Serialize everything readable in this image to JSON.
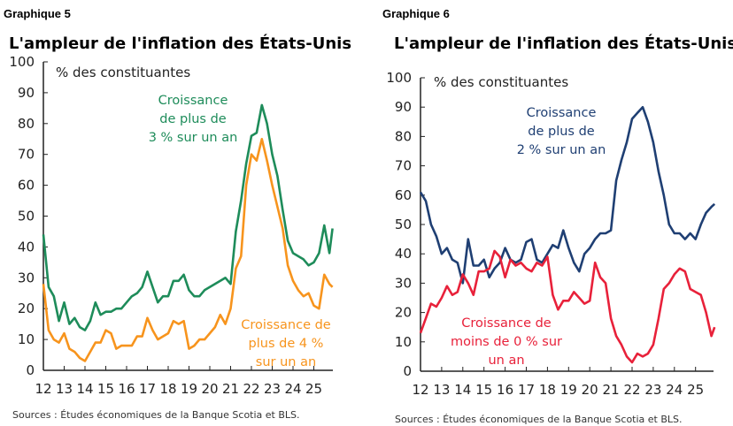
{
  "chart_data": [
    {
      "type": "line",
      "label": "Graphique 5",
      "title": "L'ampleur de l'inflation des États-Unis",
      "ylabel": "% des constituantes",
      "ylim": [
        0,
        100
      ],
      "yticks": [
        "0",
        "10",
        "20",
        "30",
        "40",
        "50",
        "60",
        "70",
        "80",
        "90",
        "100"
      ],
      "xticks": [
        "12",
        "13",
        "14",
        "15",
        "16",
        "17",
        "18",
        "19",
        "20",
        "21",
        "22",
        "23",
        "24",
        "25"
      ],
      "grid": false,
      "source": "Sources : Études économiques de la Banque Scotia et BLS.",
      "x": [
        12,
        12.25,
        12.5,
        12.75,
        13,
        13.25,
        13.5,
        13.75,
        14,
        14.25,
        14.5,
        14.75,
        15,
        15.25,
        15.5,
        15.75,
        16,
        16.25,
        16.5,
        16.75,
        17,
        17.25,
        17.5,
        17.75,
        18,
        18.25,
        18.5,
        18.75,
        19,
        19.25,
        19.5,
        19.75,
        20,
        20.25,
        20.5,
        20.75,
        21,
        21.25,
        21.5,
        21.75,
        22,
        22.25,
        22.5,
        22.75,
        23,
        23.25,
        23.5,
        23.75,
        24,
        24.25,
        24.5,
        24.75,
        25,
        25.25,
        25.5,
        25.75,
        25.9
      ],
      "series": [
        {
          "name": "Croissance de plus de 3 % sur un an",
          "label_lines": [
            "Croissance",
            "de plus de",
            "3 % sur un an"
          ],
          "color": "#1e8c5a",
          "values": [
            44,
            27,
            24,
            16,
            22,
            15,
            17,
            14,
            13,
            16,
            22,
            18,
            19,
            19,
            20,
            20,
            22,
            24,
            25,
            27,
            32,
            27,
            22,
            24,
            24,
            29,
            29,
            31,
            26,
            24,
            24,
            26,
            27,
            28,
            29,
            30,
            28,
            45,
            55,
            67,
            76,
            77,
            86,
            80,
            70,
            63,
            52,
            42,
            38,
            37,
            36,
            34,
            35,
            38,
            47,
            38,
            46
          ]
        },
        {
          "name": "Croissance de plus de 4 % sur un an",
          "label_lines": [
            "Croissance de",
            "plus de 4 %",
            "sur un an"
          ],
          "color": "#f7941d",
          "values": [
            28,
            13,
            10,
            9,
            12,
            7,
            6,
            4,
            3,
            6,
            9,
            9,
            13,
            12,
            7,
            8,
            8,
            8,
            11,
            11,
            17,
            13,
            10,
            11,
            12,
            16,
            15,
            16,
            7,
            8,
            10,
            10,
            12,
            14,
            18,
            15,
            20,
            33,
            37,
            60,
            70,
            68,
            75,
            68,
            60,
            53,
            46,
            34,
            29,
            26,
            24,
            25,
            21,
            20,
            31,
            28,
            27
          ]
        }
      ]
    },
    {
      "type": "line",
      "label": "Graphique 6",
      "title": "L'ampleur de l'inflation des États-Unis",
      "ylabel": "% des constituantes",
      "ylim": [
        0,
        100
      ],
      "yticks": [
        "0",
        "10",
        "20",
        "30",
        "40",
        "50",
        "60",
        "70",
        "80",
        "90",
        "100"
      ],
      "xticks": [
        "12",
        "13",
        "14",
        "15",
        "16",
        "17",
        "18",
        "19",
        "20",
        "21",
        "22",
        "23",
        "24",
        "25"
      ],
      "grid": false,
      "source": "Sources : Études économiques de la Banque Scotia et BLS.",
      "x": [
        12,
        12.25,
        12.5,
        12.75,
        13,
        13.25,
        13.5,
        13.75,
        14,
        14.25,
        14.5,
        14.75,
        15,
        15.25,
        15.5,
        15.75,
        16,
        16.25,
        16.5,
        16.75,
        17,
        17.25,
        17.5,
        17.75,
        18,
        18.25,
        18.5,
        18.75,
        19,
        19.25,
        19.5,
        19.75,
        20,
        20.25,
        20.5,
        20.75,
        21,
        21.25,
        21.5,
        21.75,
        22,
        22.25,
        22.5,
        22.75,
        23,
        23.25,
        23.5,
        23.75,
        24,
        24.25,
        24.5,
        24.75,
        25,
        25.25,
        25.5,
        25.75,
        25.9
      ],
      "series": [
        {
          "name": "Croissance de plus de 2 % sur un an",
          "label_lines": [
            "Croissance",
            "de plus de",
            "2 % sur un an"
          ],
          "color": "#1f3f73",
          "values": [
            61,
            58,
            50,
            46,
            40,
            42,
            38,
            37,
            30,
            45,
            36,
            36,
            38,
            32,
            35,
            37,
            42,
            38,
            37,
            38,
            44,
            45,
            38,
            37,
            40,
            43,
            42,
            48,
            42,
            37,
            34,
            40,
            42,
            45,
            47,
            47,
            48,
            65,
            72,
            78,
            86,
            88,
            90,
            85,
            78,
            68,
            60,
            50,
            47,
            47,
            45,
            47,
            45,
            50,
            54,
            56,
            57
          ]
        },
        {
          "name": "Croissance de moins de 0 % sur un an",
          "label_lines": [
            "Croissance de",
            "moins de 0 % sur",
            "un an"
          ],
          "color": "#e8213a",
          "values": [
            13,
            18,
            23,
            22,
            25,
            29,
            26,
            27,
            33,
            30,
            26,
            34,
            34,
            35,
            41,
            39,
            32,
            38,
            36,
            37,
            35,
            34,
            37,
            36,
            39,
            26,
            21,
            24,
            24,
            27,
            25,
            23,
            24,
            37,
            32,
            30,
            18,
            12,
            9,
            5,
            3,
            6,
            5,
            6,
            9,
            18,
            28,
            30,
            33,
            35,
            34,
            28,
            27,
            26,
            20,
            12,
            15
          ]
        }
      ]
    }
  ]
}
